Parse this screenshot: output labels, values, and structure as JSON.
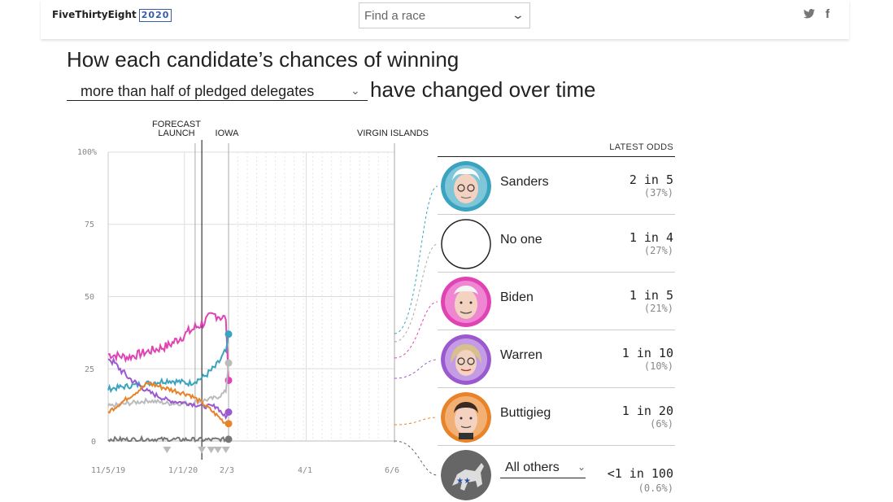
{
  "header": {
    "logo_text": "FiveThirtyEight",
    "logo_year": "2020",
    "race_select_placeholder": "Find a race",
    "share_twitter": "🐦",
    "share_facebook": "f"
  },
  "headline": {
    "line1": "How each candidate’s chances of winning",
    "dropdown_value": "more than half of pledged delegates",
    "line2": "have changed over time"
  },
  "annotations": {
    "forecast_launch": "FORECAST LAUNCH",
    "iowa": "IOWA",
    "virgin_islands": "VIRGIN ISLANDS"
  },
  "odds_panel": {
    "header": "LATEST ODDS",
    "candidates": [
      {
        "name": "Sanders",
        "odds": "2 in 5",
        "pct": "(37%)",
        "color": "#3aa3c0"
      },
      {
        "name": "No one",
        "odds": "1 in 4",
        "pct": "(27%)",
        "color": "#aaaaaa"
      },
      {
        "name": "Biden",
        "odds": "1 in 5",
        "pct": "(21%)",
        "color": "#e043b4"
      },
      {
        "name": "Warren",
        "odds": "1 in 10",
        "pct": "(10%)",
        "color": "#9b59d0"
      },
      {
        "name": "Buttigieg",
        "odds": "1 in 20",
        "pct": "(6%)",
        "color": "#e8832a"
      },
      {
        "name": "All others",
        "odds": "<1 in 100",
        "pct": "(0.6%)",
        "color": "#666666"
      }
    ]
  },
  "chart_data": {
    "type": "line",
    "ylabel": "",
    "xlabel": "",
    "y_ticks": [
      "100%",
      "75",
      "50",
      "25",
      "0"
    ],
    "x_ticks": [
      "11/5/19",
      "1/1/20",
      "2/3",
      "4/1",
      "6/6"
    ],
    "ylim": [
      0,
      100
    ],
    "x_domain": [
      "2019-11-05",
      "2020-06-06"
    ],
    "grid": true,
    "markers": [
      {
        "label": "FORECAST LAUNCH",
        "date": "2020-01-09"
      },
      {
        "label": "IOWA",
        "date": "2020-02-03"
      },
      {
        "label": "VIRGIN ISLANDS",
        "date": "2020-06-06"
      }
    ],
    "current_date": "2020-01-14",
    "series": [
      {
        "name": "Biden",
        "color": "#e043b4",
        "x": [
          "2019-11-05",
          "2019-11-20",
          "2019-12-05",
          "2019-12-20",
          "2020-01-05",
          "2020-01-15",
          "2020-01-25",
          "2020-02-01",
          "2020-02-03"
        ],
        "y": [
          30,
          29,
          31,
          33,
          38,
          41,
          44,
          42,
          21
        ]
      },
      {
        "name": "Sanders",
        "color": "#3aa3c0",
        "x": [
          "2019-11-05",
          "2019-11-20",
          "2019-12-05",
          "2019-12-20",
          "2020-01-05",
          "2020-01-15",
          "2020-01-25",
          "2020-02-01",
          "2020-02-03"
        ],
        "y": [
          18,
          19,
          20,
          21,
          20,
          22,
          26,
          31,
          37
        ]
      },
      {
        "name": "No one",
        "color": "#bbbbbb",
        "x": [
          "2019-11-05",
          "2019-11-20",
          "2019-12-05",
          "2019-12-20",
          "2020-01-05",
          "2020-01-15",
          "2020-01-25",
          "2020-02-01",
          "2020-02-03"
        ],
        "y": [
          12,
          13,
          14,
          13,
          13,
          14,
          15,
          17,
          27
        ]
      },
      {
        "name": "Warren",
        "color": "#9b59d0",
        "x": [
          "2019-11-05",
          "2019-11-20",
          "2019-12-05",
          "2019-12-20",
          "2020-01-05",
          "2020-01-15",
          "2020-01-25",
          "2020-02-01",
          "2020-02-03"
        ],
        "y": [
          29,
          22,
          17,
          14,
          13,
          12,
          12,
          8,
          10
        ]
      },
      {
        "name": "Buttigieg",
        "color": "#e8832a",
        "x": [
          "2019-11-05",
          "2019-11-20",
          "2019-12-05",
          "2019-12-20",
          "2020-01-05",
          "2020-01-15",
          "2020-01-25",
          "2020-02-01",
          "2020-02-03"
        ],
        "y": [
          10,
          15,
          20,
          18,
          16,
          13,
          9,
          6,
          6
        ]
      },
      {
        "name": "All others",
        "color": "#777777",
        "x": [
          "2019-11-05",
          "2019-11-20",
          "2019-12-05",
          "2019-12-20",
          "2020-01-05",
          "2020-01-15",
          "2020-01-25",
          "2020-02-01",
          "2020-02-03"
        ],
        "y": [
          0.6,
          0.5,
          0.6,
          0.5,
          0.5,
          0.4,
          0.5,
          0.5,
          0.6
        ]
      }
    ]
  }
}
